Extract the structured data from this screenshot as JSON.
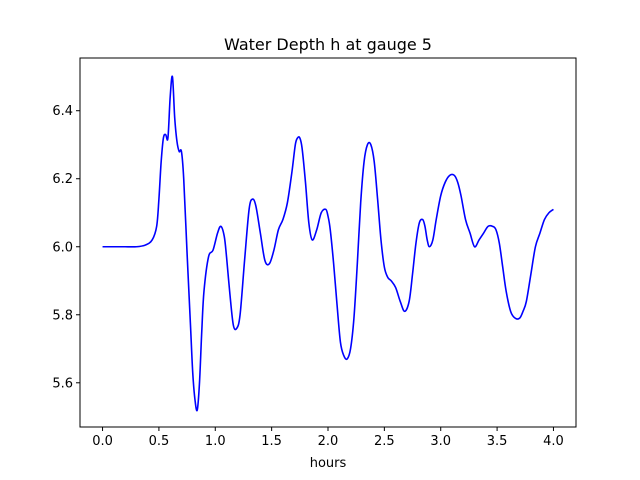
{
  "chart_data": {
    "type": "line",
    "title": "Water Depth h at gauge 5",
    "xlabel": "hours",
    "ylabel": "",
    "xlim": [
      -0.2,
      4.2
    ],
    "ylim": [
      5.47,
      6.555
    ],
    "xticks": [
      0.0,
      0.5,
      1.0,
      1.5,
      2.0,
      2.5,
      3.0,
      3.5,
      4.0
    ],
    "xtick_labels": [
      "0.0",
      "0.5",
      "1.0",
      "1.5",
      "2.0",
      "2.5",
      "3.0",
      "3.5",
      "4.0"
    ],
    "yticks": [
      5.6,
      5.8,
      6.0,
      6.2,
      6.4
    ],
    "ytick_labels": [
      "5.6",
      "5.8",
      "6.0",
      "6.2",
      "6.4"
    ],
    "grid": false,
    "series": [
      {
        "color": "#0000ff",
        "x": [
          0.0,
          0.1,
          0.2,
          0.3,
          0.38,
          0.44,
          0.48,
          0.5,
          0.52,
          0.54,
          0.56,
          0.58,
          0.6,
          0.62,
          0.64,
          0.66,
          0.68,
          0.7,
          0.72,
          0.75,
          0.78,
          0.8,
          0.82,
          0.84,
          0.86,
          0.88,
          0.9,
          0.94,
          0.98,
          1.02,
          1.05,
          1.08,
          1.1,
          1.13,
          1.16,
          1.19,
          1.22,
          1.26,
          1.3,
          1.33,
          1.36,
          1.4,
          1.44,
          1.48,
          1.52,
          1.56,
          1.6,
          1.64,
          1.68,
          1.71,
          1.73,
          1.75,
          1.77,
          1.8,
          1.83,
          1.86,
          1.9,
          1.94,
          1.98,
          2.0,
          2.02,
          2.05,
          2.08,
          2.11,
          2.14,
          2.17,
          2.2,
          2.23,
          2.26,
          2.29,
          2.32,
          2.35,
          2.38,
          2.41,
          2.44,
          2.47,
          2.5,
          2.53,
          2.56,
          2.6,
          2.64,
          2.68,
          2.72,
          2.75,
          2.78,
          2.81,
          2.84,
          2.86,
          2.88,
          2.9,
          2.93,
          2.96,
          3.0,
          3.04,
          3.08,
          3.12,
          3.15,
          3.18,
          3.22,
          3.26,
          3.3,
          3.34,
          3.38,
          3.42,
          3.46,
          3.49,
          3.52,
          3.55,
          3.58,
          3.62,
          3.66,
          3.7,
          3.73,
          3.76,
          3.8,
          3.84,
          3.88,
          3.92,
          3.96,
          4.0
        ],
        "y": [
          6.0,
          6.0,
          6.0,
          6.0,
          6.005,
          6.02,
          6.06,
          6.14,
          6.25,
          6.32,
          6.33,
          6.32,
          6.44,
          6.5,
          6.38,
          6.31,
          6.28,
          6.28,
          6.2,
          5.98,
          5.77,
          5.63,
          5.55,
          5.52,
          5.6,
          5.75,
          5.87,
          5.97,
          5.99,
          6.04,
          6.06,
          6.03,
          5.97,
          5.86,
          5.77,
          5.76,
          5.8,
          5.96,
          6.11,
          6.14,
          6.12,
          6.04,
          5.96,
          5.95,
          5.99,
          6.05,
          6.08,
          6.13,
          6.22,
          6.3,
          6.32,
          6.32,
          6.29,
          6.19,
          6.07,
          6.02,
          6.05,
          6.1,
          6.11,
          6.09,
          6.05,
          5.95,
          5.83,
          5.72,
          5.68,
          5.67,
          5.7,
          5.79,
          5.95,
          6.13,
          6.25,
          6.3,
          6.3,
          6.25,
          6.14,
          6.02,
          5.94,
          5.91,
          5.9,
          5.88,
          5.84,
          5.81,
          5.84,
          5.92,
          6.01,
          6.07,
          6.08,
          6.06,
          6.02,
          6.0,
          6.02,
          6.08,
          6.15,
          6.19,
          6.21,
          6.21,
          6.19,
          6.15,
          6.08,
          6.04,
          6.0,
          6.02,
          6.04,
          6.06,
          6.06,
          6.05,
          6.01,
          5.94,
          5.87,
          5.81,
          5.79,
          5.79,
          5.81,
          5.84,
          5.92,
          6.0,
          6.04,
          6.08,
          6.1,
          6.11
        ]
      }
    ]
  }
}
